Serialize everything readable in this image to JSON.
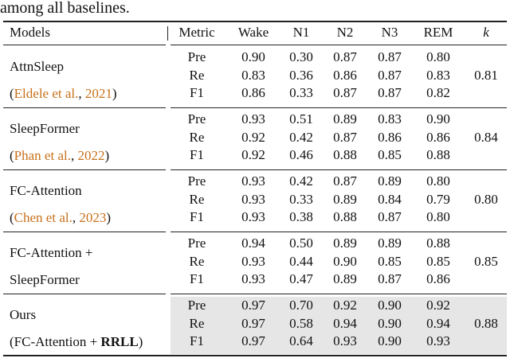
{
  "caption_fragment": "among all baselines.",
  "table": {
    "header": [
      "Models",
      "Metric",
      "Wake",
      "N1",
      "N2",
      "N3",
      "REM",
      "k"
    ],
    "groups": [
      {
        "model": [
          [
            {
              "text": "AttnSleep"
            }
          ],
          [
            {
              "text": "("
            },
            {
              "text": "Eldele et al.",
              "link": true
            },
            {
              "text": ", "
            },
            {
              "text": "2021",
              "link": true
            },
            {
              "text": ")"
            }
          ]
        ],
        "rows": [
          [
            "Pre",
            "0.90",
            "0.30",
            "0.87",
            "0.87",
            "0.80"
          ],
          [
            "Re",
            "0.83",
            "0.36",
            "0.86",
            "0.87",
            "0.83"
          ],
          [
            "F1",
            "0.86",
            "0.33",
            "0.87",
            "0.87",
            "0.82"
          ]
        ],
        "kappa": "0.81",
        "highlight": false
      },
      {
        "model": [
          [
            {
              "text": "SleepFormer"
            }
          ],
          [
            {
              "text": "("
            },
            {
              "text": "Phan et al.",
              "link": true
            },
            {
              "text": ", "
            },
            {
              "text": "2022",
              "link": true
            },
            {
              "text": ")"
            }
          ]
        ],
        "rows": [
          [
            "Pre",
            "0.93",
            "0.51",
            "0.89",
            "0.83",
            "0.90"
          ],
          [
            "Re",
            "0.92",
            "0.42",
            "0.87",
            "0.86",
            "0.86"
          ],
          [
            "F1",
            "0.92",
            "0.46",
            "0.88",
            "0.85",
            "0.88"
          ]
        ],
        "kappa": "0.84",
        "highlight": false
      },
      {
        "model": [
          [
            {
              "text": "FC-Attention"
            }
          ],
          [
            {
              "text": "("
            },
            {
              "text": "Chen et al.",
              "link": true
            },
            {
              "text": ", "
            },
            {
              "text": "2023",
              "link": true
            },
            {
              "text": ")"
            }
          ]
        ],
        "rows": [
          [
            "Pre",
            "0.93",
            "0.42",
            "0.87",
            "0.89",
            "0.80"
          ],
          [
            "Re",
            "0.93",
            "0.33",
            "0.89",
            "0.84",
            "0.79"
          ],
          [
            "F1",
            "0.93",
            "0.38",
            "0.88",
            "0.87",
            "0.80"
          ]
        ],
        "kappa": "0.80",
        "highlight": false
      },
      {
        "model": [
          [
            {
              "text": "FC-Attention +"
            }
          ],
          [
            {
              "text": "SleepFormer"
            }
          ]
        ],
        "rows": [
          [
            "Pre",
            "0.94",
            "0.50",
            "0.89",
            "0.89",
            "0.88"
          ],
          [
            "Re",
            "0.93",
            "0.44",
            "0.90",
            "0.85",
            "0.85"
          ],
          [
            "F1",
            "0.93",
            "0.47",
            "0.89",
            "0.87",
            "0.86"
          ]
        ],
        "kappa": "0.85",
        "highlight": false
      },
      {
        "model": [
          [
            {
              "text": "Ours"
            }
          ],
          [
            {
              "text": "(FC-Attention + "
            },
            {
              "text": "RRLL",
              "bold": true
            },
            {
              "text": ")"
            }
          ]
        ],
        "rows": [
          [
            "Pre",
            "0.97",
            "0.70",
            "0.92",
            "0.90",
            "0.92"
          ],
          [
            "Re",
            "0.97",
            "0.58",
            "0.94",
            "0.90",
            "0.94"
          ],
          [
            "F1",
            "0.97",
            "0.64",
            "0.93",
            "0.90",
            "0.93"
          ]
        ],
        "kappa": "0.88",
        "highlight": true
      }
    ]
  }
}
